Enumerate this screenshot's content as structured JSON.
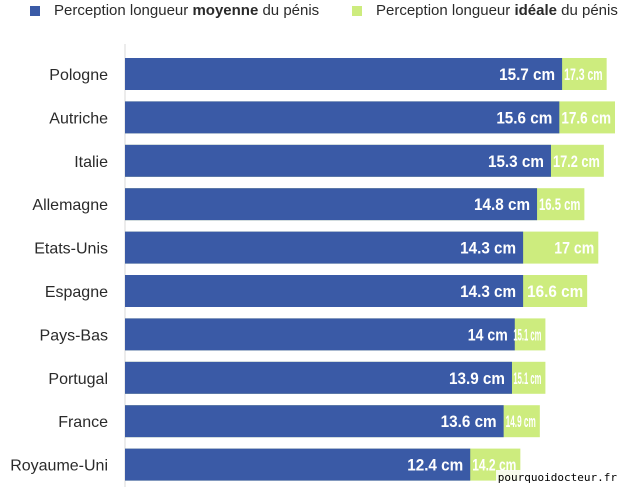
{
  "legend": {
    "series_a": {
      "prefix": "Perception longueur ",
      "bold": "moyenne",
      "suffix": " du pénis"
    },
    "series_b": {
      "prefix": "Perception longueur ",
      "bold": "idéale",
      "suffix": " du pénis"
    }
  },
  "watermark": "pourquoidocteur.fr",
  "colors": {
    "moyenne": "#3a5aa6",
    "ideale": "#cdec7e"
  },
  "chart_data": {
    "type": "bar",
    "orientation": "horizontal",
    "stacked": false,
    "overlay": true,
    "unit": "cm",
    "categories": [
      "Pologne",
      "Autriche",
      "Italie",
      "Allemagne",
      "Etats-Unis",
      "Espagne",
      "Pays-Bas",
      "Portugal",
      "France",
      "Royaume-Uni"
    ],
    "series": [
      {
        "name": "Perception longueur moyenne du pénis",
        "values": [
          15.7,
          15.6,
          15.3,
          14.8,
          14.3,
          14.3,
          14,
          13.9,
          13.6,
          12.4
        ],
        "labels": [
          "15.7 cm",
          "15.6 cm",
          "15.3 cm",
          "14.8 cm",
          "14.3 cm",
          "14.3 cm",
          "14 cm",
          "13.9 cm",
          "13.6 cm",
          "12.4 cm"
        ]
      },
      {
        "name": "Perception longueur idéale du pénis",
        "values": [
          17.3,
          17.6,
          17.2,
          16.5,
          17,
          16.6,
          15.1,
          15.1,
          14.9,
          14.2
        ],
        "labels": [
          "17.3 cm",
          "17.6 cm",
          "17.2 cm",
          "16.5 cm",
          "17 cm",
          "16.6 cm",
          "15.1 cm",
          "15.1 cm",
          "14.9 cm",
          "14.2 cm"
        ]
      }
    ],
    "xlim": [
      0,
      17.6
    ],
    "grid": false,
    "legend_position": "top"
  }
}
